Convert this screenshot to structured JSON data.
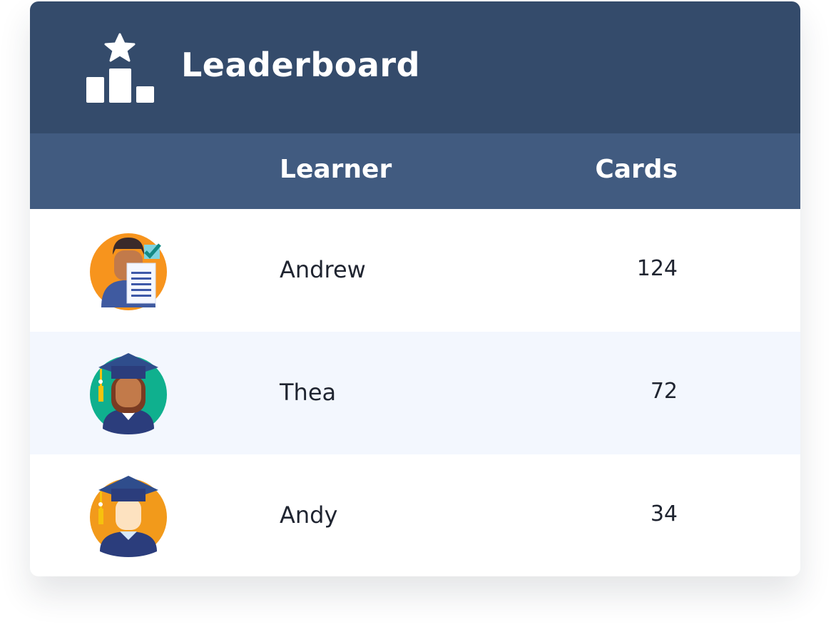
{
  "header": {
    "title": "Leaderboard",
    "icon": "podium-star-icon"
  },
  "columns": {
    "learner": "Learner",
    "cards": "Cards"
  },
  "rows": [
    {
      "name": "Andrew",
      "cards": "124",
      "avatar": "man-with-certificate-avatar",
      "avatar_bg": "#f7941d"
    },
    {
      "name": "Thea",
      "cards": "72",
      "avatar": "graduate-woman-avatar",
      "avatar_bg": "#0fb08e"
    },
    {
      "name": "Andy",
      "cards": "34",
      "avatar": "graduate-man-avatar",
      "avatar_bg": "#f29a1b"
    }
  ],
  "colors": {
    "header": "#344b6b",
    "column_header": "#415b80",
    "alt_row": "#f3f7fe"
  }
}
